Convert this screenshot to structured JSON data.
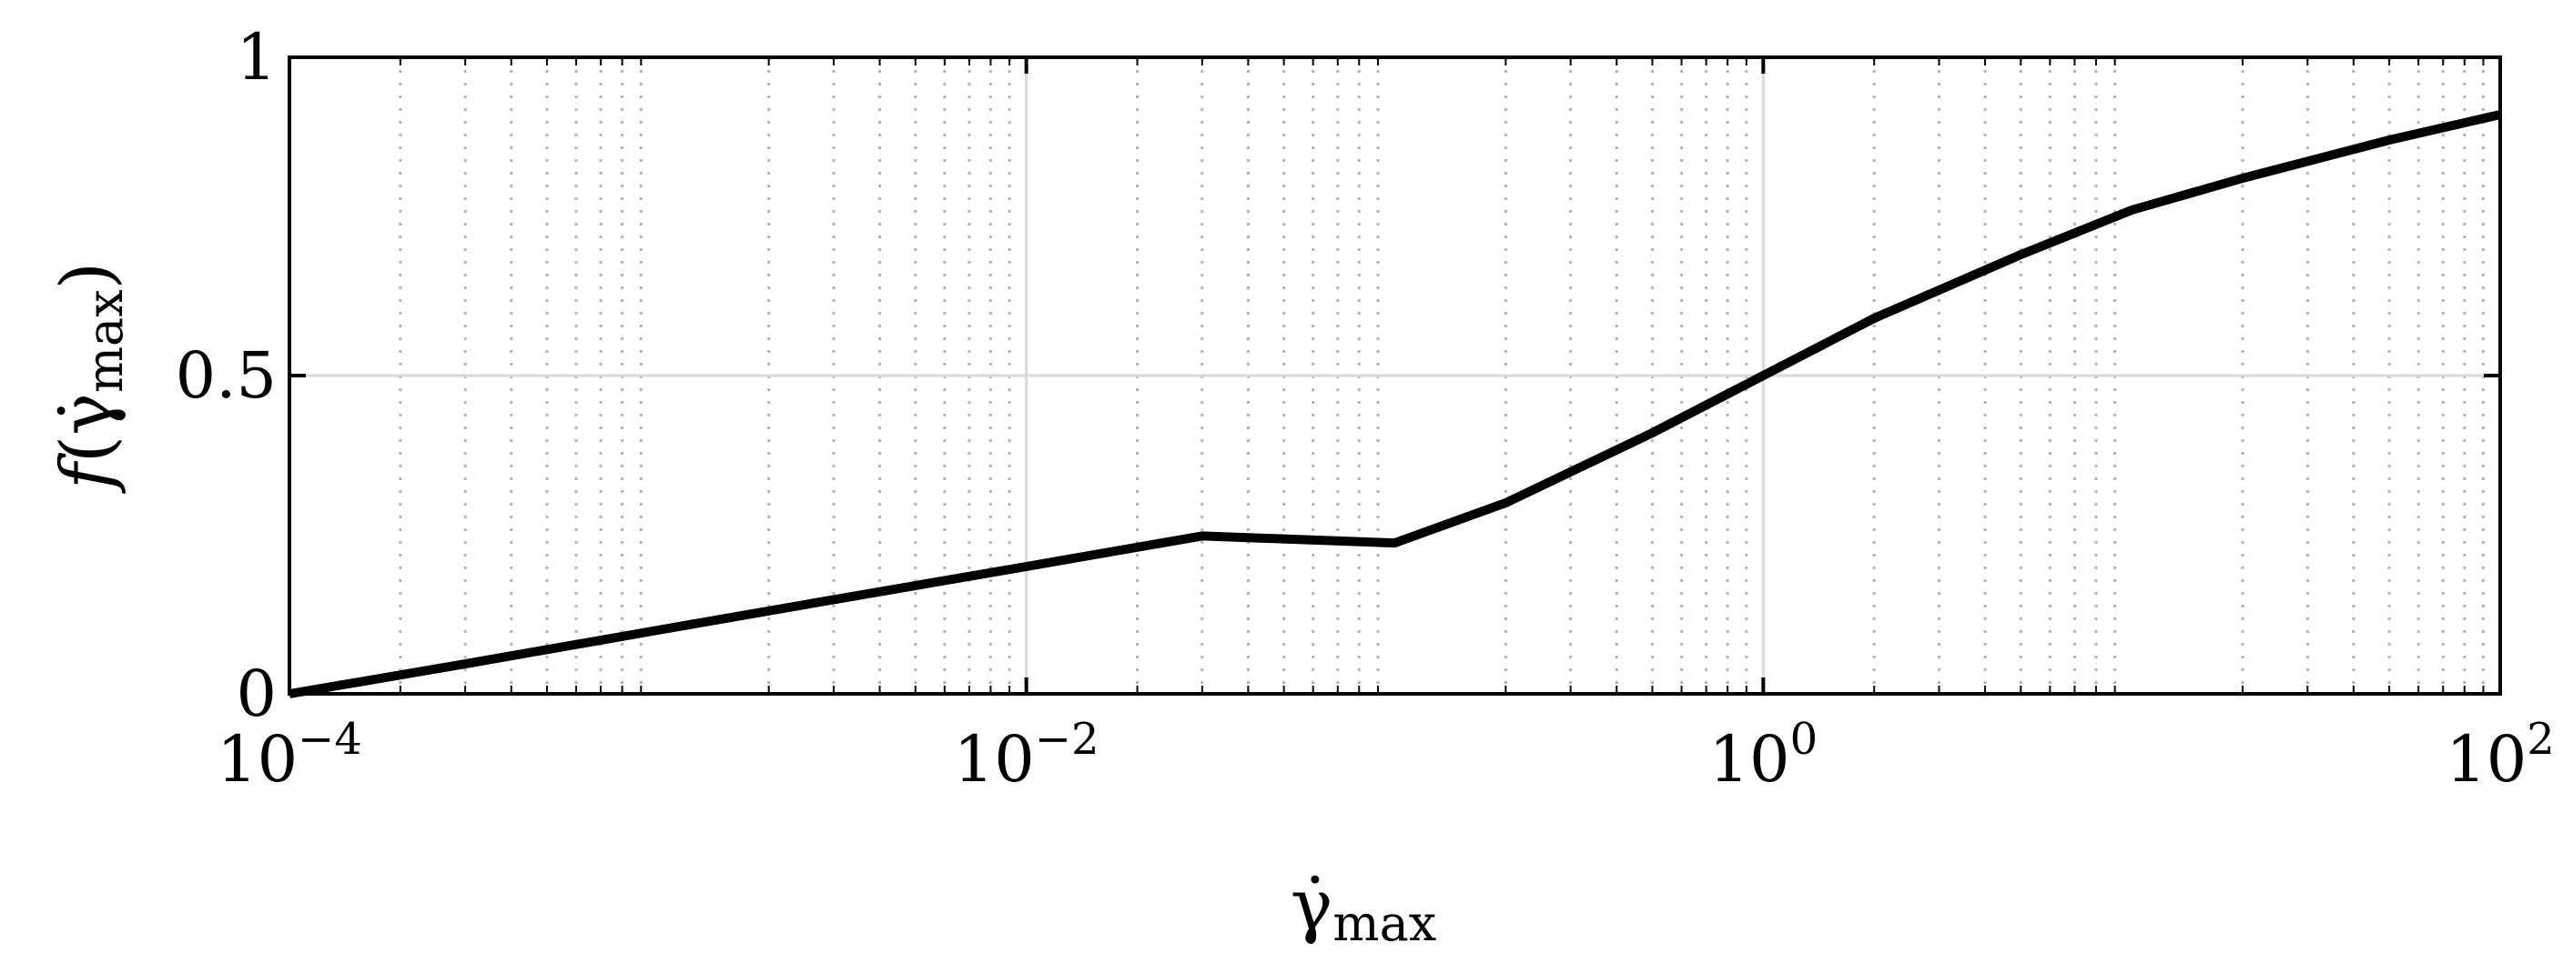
{
  "chart_data": {
    "type": "line",
    "x_scale": "log",
    "xlim": [
      0.0001,
      100
    ],
    "ylim": [
      0,
      1
    ],
    "xlabel": {
      "base": "γ̇",
      "sub": "max"
    },
    "ylabel": {
      "func": "f",
      "open": "(",
      "base": "γ̇",
      "sub": "max",
      "close": ")"
    },
    "x_ticks": [
      {
        "value": 0.0001,
        "base": "10",
        "exp": "−4"
      },
      {
        "value": 0.01,
        "base": "10",
        "exp": "−2"
      },
      {
        "value": 1,
        "base": "10",
        "exp": "0"
      },
      {
        "value": 100,
        "base": "10",
        "exp": "2"
      }
    ],
    "y_ticks": [
      {
        "value": 0,
        "label": "0"
      },
      {
        "value": 0.5,
        "label": "0.5"
      },
      {
        "value": 1,
        "label": "1"
      }
    ],
    "grid": {
      "major": true,
      "minor_x": true
    },
    "series": [
      {
        "color": "#000000",
        "x": [
          0.0001,
          0.0003,
          0.001,
          0.003,
          0.01,
          0.03,
          0.1,
          0.2,
          0.5,
          1,
          2,
          5,
          10,
          20,
          50,
          100
        ],
        "y": [
          0.0,
          0.047,
          0.1,
          0.148,
          0.2,
          0.248,
          0.237,
          0.3,
          0.41,
          0.5,
          0.59,
          0.69,
          0.76,
          0.81,
          0.87,
          0.91
        ]
      }
    ]
  }
}
